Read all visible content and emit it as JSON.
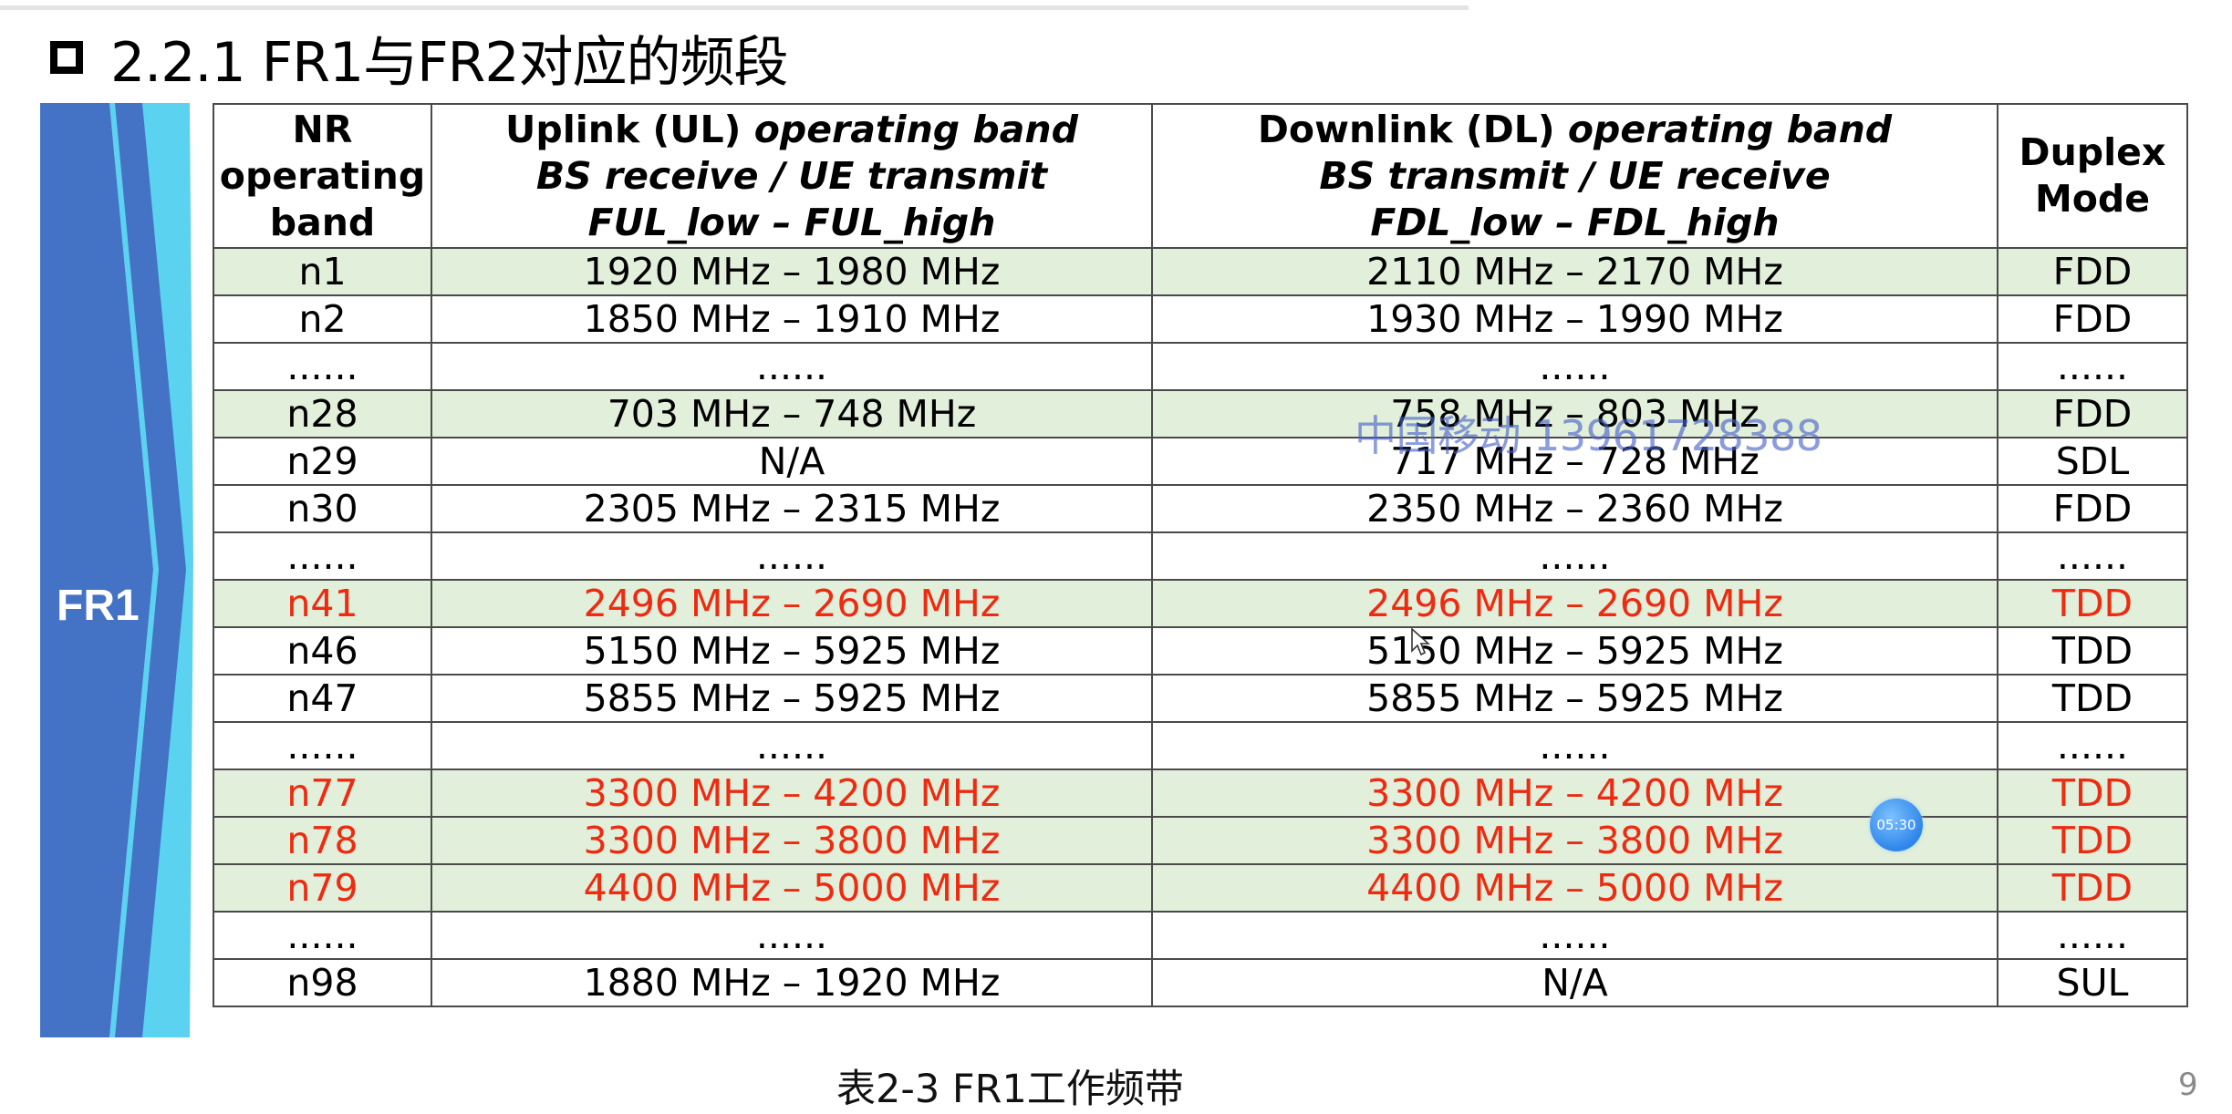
{
  "heading": "2.2.1 FR1与FR2对应的频段",
  "side_label": "FR1",
  "table": {
    "header": {
      "col1": [
        "NR",
        "operating",
        "band"
      ],
      "col2": {
        "l1a": "Uplink (UL) ",
        "l1b": "operating band",
        "l2": "BS receive / UE transmit",
        "l3": "FUL_low   –  FUL_high"
      },
      "col3": {
        "l1a": "Downlink (DL) ",
        "l1b": "operating band",
        "l2": "BS transmit / UE receive",
        "l3": "FDL_low   –  FDL_high"
      },
      "col4": [
        "Duplex",
        "Mode"
      ]
    },
    "rows": [
      {
        "band": "n1",
        "ul": "1920 MHz – 1980 MHz",
        "dl": "2110 MHz – 2170 MHz",
        "duplex": "FDD"
      },
      {
        "band": "n2",
        "ul": "1850 MHz – 1910 MHz",
        "dl": "1930 MHz – 1990 MHz",
        "duplex": "FDD"
      },
      {
        "band": "......",
        "ul": "......",
        "dl": "......",
        "duplex": "......"
      },
      {
        "band": "n28",
        "ul": "703 MHz – 748 MHz",
        "dl": "758 MHz – 803 MHz",
        "duplex": "FDD"
      },
      {
        "band": "n29",
        "ul": "N/A",
        "dl": "717 MHz – 728 MHz",
        "duplex": "SDL"
      },
      {
        "band": "n30",
        "ul": "2305 MHz – 2315 MHz",
        "dl": "2350 MHz – 2360 MHz",
        "duplex": "FDD"
      },
      {
        "band": "......",
        "ul": "......",
        "dl": "......",
        "duplex": "......"
      },
      {
        "band": "n41",
        "ul": "2496 MHz – 2690 MHz",
        "dl": "2496 MHz – 2690 MHz",
        "duplex": "TDD"
      },
      {
        "band": "n46",
        "ul": "5150 MHz – 5925 MHz",
        "dl": "5150 MHz – 5925 MHz",
        "duplex": "TDD"
      },
      {
        "band": "n47",
        "ul": "5855 MHz – 5925 MHz",
        "dl": "5855 MHz – 5925 MHz",
        "duplex": "TDD"
      },
      {
        "band": "......",
        "ul": "......",
        "dl": "......",
        "duplex": "......"
      },
      {
        "band": "n77",
        "ul": "3300 MHz – 4200 MHz",
        "dl": "3300 MHz – 4200 MHz",
        "duplex": "TDD"
      },
      {
        "band": "n78",
        "ul": "3300 MHz – 3800 MHz",
        "dl": "3300 MHz – 3800 MHz",
        "duplex": "TDD"
      },
      {
        "band": "n79",
        "ul": "4400 MHz – 5000 MHz",
        "dl": "4400 MHz – 5000 MHz",
        "duplex": "TDD"
      },
      {
        "band": "......",
        "ul": "......",
        "dl": "......",
        "duplex": "......"
      },
      {
        "band": "n98",
        "ul": "1880 MHz – 1920 MHz",
        "dl": "N/A",
        "duplex": "SUL"
      }
    ]
  },
  "caption": "表2-3  FR1工作频带",
  "page_number": "9",
  "watermark": "中国移动 13961728388",
  "timer": "05:30",
  "colors": {
    "arrow_blue": "#4472c4",
    "arrow_edge": "#5bd3f0",
    "row_highlight": "#e2efda",
    "highlight_text": "#ee2a10"
  }
}
